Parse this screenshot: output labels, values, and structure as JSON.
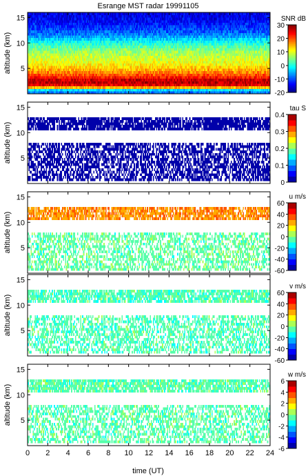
{
  "chart_data": {
    "type": "heatmap",
    "title": "Esrange MST radar 19991105",
    "xlabel": "time (UT)",
    "xlim": [
      0,
      24
    ],
    "xticks": [
      0,
      2,
      4,
      6,
      8,
      10,
      12,
      14,
      16,
      18,
      20,
      22,
      24
    ],
    "panels": [
      {
        "variable": "SNR",
        "ylabel": "altitude (km)",
        "ylim": [
          0,
          16
        ],
        "yticks": [
          5,
          10,
          15
        ],
        "colorbar": {
          "label": "SNR dB",
          "range": [
            -20,
            30
          ],
          "ticks": [
            30,
            20,
            10,
            0,
            -10,
            -20
          ],
          "colormap": "jet-continuous"
        },
        "profile": [
          {
            "altitude_km": 0.6,
            "value": -8
          },
          {
            "altitude_km": 1.5,
            "value": 24
          },
          {
            "altitude_km": 2.5,
            "value": 28
          },
          {
            "altitude_km": 3.5,
            "value": 21
          },
          {
            "altitude_km": 4.5,
            "value": 16
          },
          {
            "altitude_km": 5.5,
            "value": 12
          },
          {
            "altitude_km": 6.5,
            "value": 10
          },
          {
            "altitude_km": 7.5,
            "value": 8
          },
          {
            "altitude_km": 8.5,
            "value": 6
          },
          {
            "altitude_km": 9.5,
            "value": 2
          },
          {
            "altitude_km": 10.5,
            "value": -2
          },
          {
            "altitude_km": 11.5,
            "value": -7
          },
          {
            "altitude_km": 12.5,
            "value": -10
          },
          {
            "altitude_km": 13.5,
            "value": -12
          },
          {
            "altitude_km": 14.5,
            "value": -14
          },
          {
            "altitude_km": 15.5,
            "value": -15
          }
        ]
      },
      {
        "variable": "tau",
        "ylabel": "altitude (km)",
        "ylim": [
          0,
          16
        ],
        "yticks": [
          5,
          10,
          15
        ],
        "colorbar": {
          "label": "tau S",
          "range": [
            0,
            0.4
          ],
          "ticks": [
            0.4,
            0.3,
            0.2,
            0.1,
            0
          ],
          "colormap": "jet-discrete"
        },
        "typical_value": 0.0,
        "coverage": [
          {
            "from_km": 0.4,
            "to_km": 8.0,
            "fill": 0.6
          },
          {
            "from_km": 10.4,
            "to_km": 13.0,
            "fill": 0.8
          }
        ]
      },
      {
        "variable": "u",
        "ylabel": "altitude (km)",
        "ylim": [
          0,
          16
        ],
        "yticks": [
          5,
          10,
          15
        ],
        "colorbar": {
          "label": "u m/s",
          "range": [
            -60,
            60
          ],
          "ticks": [
            60,
            40,
            20,
            0,
            -20,
            -40,
            -60
          ],
          "colormap": "jet-discrete"
        },
        "jet": {
          "altitude_km": [
            10.5,
            13.0
          ],
          "value": 28
        },
        "typical_value": -4,
        "coverage": [
          {
            "from_km": 0.6,
            "to_km": 8.0,
            "fill": 0.5
          },
          {
            "from_km": 10.4,
            "to_km": 13.0,
            "fill": 0.75
          }
        ]
      },
      {
        "variable": "v",
        "ylabel": "altitude (km)",
        "ylim": [
          0,
          16
        ],
        "yticks": [
          5,
          10,
          15
        ],
        "colorbar": {
          "label": "v m/s",
          "range": [
            -60,
            60
          ],
          "ticks": [
            60,
            40,
            20,
            0,
            -20,
            -40,
            -60
          ],
          "colormap": "jet-discrete"
        },
        "typical_value": -6,
        "coverage": [
          {
            "from_km": 0.6,
            "to_km": 8.0,
            "fill": 0.5
          },
          {
            "from_km": 10.4,
            "to_km": 13.0,
            "fill": 0.75
          }
        ]
      },
      {
        "variable": "w",
        "ylabel": "altitude (km)",
        "ylim": [
          0,
          16
        ],
        "yticks": [
          5,
          10,
          15
        ],
        "colorbar": {
          "label": "w m/s",
          "range": [
            -6,
            6
          ],
          "ticks": [
            6,
            4,
            2,
            0,
            -2,
            -4,
            -6
          ],
          "colormap": "jet-discrete"
        },
        "typical_value": -0.5,
        "coverage": [
          {
            "from_km": 0.6,
            "to_km": 8.0,
            "fill": 0.5
          },
          {
            "from_km": 10.4,
            "to_km": 13.0,
            "fill": 0.75
          }
        ]
      }
    ]
  }
}
